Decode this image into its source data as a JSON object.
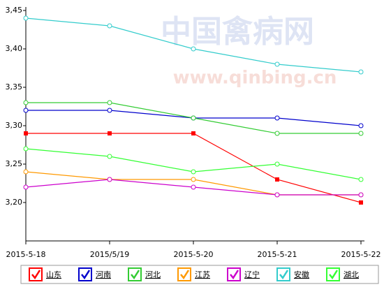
{
  "chart_data": {
    "type": "line",
    "watermark": [
      "中国禽病网",
      "www.qinbing.cn"
    ],
    "categories": [
      "2015-5-18",
      "2015/5/19",
      "2015-5-20",
      "2015-5-21",
      "2015-5-22"
    ],
    "ylim": [
      3.15,
      3.45
    ],
    "yticks": [
      {
        "value": 3.45,
        "label": "3,45"
      },
      {
        "value": 3.4,
        "label": "3,40"
      },
      {
        "value": 3.35,
        "label": "3,35"
      },
      {
        "value": 3.3,
        "label": "3,30"
      },
      {
        "value": 3.25,
        "label": "3,25"
      },
      {
        "value": 3.2,
        "label": "3,20"
      }
    ],
    "series": [
      {
        "name": "山东",
        "color": "#ff0000",
        "marker": "square",
        "values": [
          3.29,
          3.29,
          3.29,
          3.23,
          3.2
        ]
      },
      {
        "name": "河南",
        "color": "#0000cc",
        "marker": "circle",
        "values": [
          3.32,
          3.32,
          3.31,
          3.31,
          3.3
        ]
      },
      {
        "name": "河北",
        "color": "#33cc33",
        "marker": "circle",
        "values": [
          3.33,
          3.33,
          3.31,
          3.29,
          3.29
        ]
      },
      {
        "name": "江苏",
        "color": "#ff9900",
        "marker": "circle",
        "values": [
          3.24,
          3.23,
          3.23,
          3.21,
          3.21
        ]
      },
      {
        "name": "辽宁",
        "color": "#cc00cc",
        "marker": "circle",
        "values": [
          3.22,
          3.23,
          3.22,
          3.21,
          3.21
        ]
      },
      {
        "name": "安徽",
        "color": "#33cccc",
        "marker": "circle",
        "values": [
          3.44,
          3.43,
          3.4,
          3.38,
          3.37
        ]
      },
      {
        "name": "湖北",
        "color": "#33ff33",
        "marker": "circle",
        "values": [
          3.27,
          3.26,
          3.24,
          3.25,
          3.23
        ]
      }
    ]
  }
}
